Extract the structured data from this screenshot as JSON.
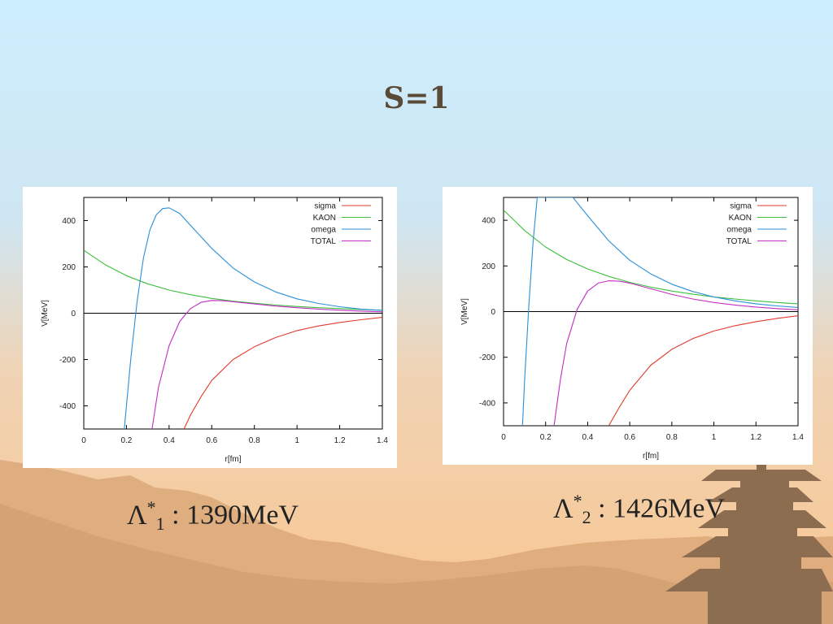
{
  "slide": {
    "title": "S=1",
    "colors": {
      "sky_top": "#cfeefc",
      "sky_bottom": "#f7c896",
      "hills": "#c99a6b",
      "pagoda": "#8a6a4e",
      "title": "#5a4a38"
    },
    "captions": [
      {
        "symbol": "Λ",
        "sub": "1",
        "sup": "*",
        "text": ": 1390MeV"
      },
      {
        "symbol": "Λ",
        "sub": "2",
        "sup": "*",
        "text": ": 1426MeV"
      }
    ]
  },
  "chart_data": [
    {
      "type": "line",
      "xlabel": "r[fm]",
      "ylabel": "V[MeV]",
      "xlim": [
        0,
        1.4
      ],
      "ylim": [
        -500,
        500
      ],
      "xticks": [
        0,
        0.2,
        0.4,
        0.6,
        0.8,
        1,
        1.2,
        1.4
      ],
      "yticks": [
        -400,
        -200,
        0,
        200,
        400
      ],
      "legend_position": "top-right",
      "series": [
        {
          "name": "sigma",
          "color": "#e23b2e",
          "x": [
            0.47,
            0.5,
            0.55,
            0.6,
            0.7,
            0.8,
            0.9,
            1.0,
            1.1,
            1.2,
            1.3,
            1.4
          ],
          "y": [
            -500,
            -440,
            -360,
            -290,
            -200,
            -145,
            -105,
            -75,
            -55,
            -40,
            -28,
            -18
          ]
        },
        {
          "name": "KAON",
          "color": "#3cbf3c",
          "x": [
            0,
            0.1,
            0.2,
            0.3,
            0.4,
            0.5,
            0.6,
            0.7,
            0.8,
            0.9,
            1.0,
            1.1,
            1.2,
            1.3,
            1.4
          ],
          "y": [
            272,
            210,
            162,
            127,
            100,
            80,
            64,
            52,
            43,
            35,
            29,
            24,
            20,
            16,
            13
          ]
        },
        {
          "name": "omega",
          "color": "#2a8fd8",
          "x": [
            0.19,
            0.22,
            0.25,
            0.28,
            0.31,
            0.34,
            0.37,
            0.4,
            0.45,
            0.5,
            0.6,
            0.7,
            0.8,
            0.9,
            1.0,
            1.1,
            1.2,
            1.3,
            1.4
          ],
          "y": [
            -500,
            -200,
            50,
            240,
            360,
            425,
            452,
            455,
            430,
            380,
            280,
            195,
            135,
            92,
            62,
            42,
            28,
            18,
            12
          ]
        },
        {
          "name": "TOTAL",
          "color": "#c22ec2",
          "x": [
            0.32,
            0.35,
            0.4,
            0.45,
            0.5,
            0.55,
            0.6,
            0.65,
            0.7,
            0.8,
            0.9,
            1.0,
            1.1,
            1.2,
            1.3,
            1.4
          ],
          "y": [
            -500,
            -320,
            -140,
            -35,
            20,
            47,
            55,
            54,
            50,
            40,
            31,
            24,
            18,
            13,
            9,
            6
          ]
        }
      ]
    },
    {
      "type": "line",
      "xlabel": "r[fm]",
      "ylabel": "V[MeV]",
      "xlim": [
        0,
        1.4
      ],
      "ylim": [
        -500,
        500
      ],
      "xticks": [
        0,
        0.2,
        0.4,
        0.6,
        0.8,
        1,
        1.2,
        1.4
      ],
      "yticks": [
        -400,
        -200,
        0,
        200,
        400
      ],
      "legend_position": "top-right",
      "series": [
        {
          "name": "sigma",
          "color": "#e23b2e",
          "x": [
            0.5,
            0.55,
            0.6,
            0.7,
            0.8,
            0.9,
            1.0,
            1.1,
            1.2,
            1.3,
            1.4
          ],
          "y": [
            -500,
            -420,
            -345,
            -235,
            -165,
            -118,
            -85,
            -62,
            -44,
            -30,
            -18
          ]
        },
        {
          "name": "KAON",
          "color": "#3cbf3c",
          "x": [
            0,
            0.1,
            0.2,
            0.3,
            0.4,
            0.5,
            0.6,
            0.7,
            0.8,
            0.9,
            1.0,
            1.1,
            1.2,
            1.3,
            1.4
          ],
          "y": [
            445,
            355,
            283,
            228,
            187,
            154,
            128,
            107,
            90,
            76,
            64,
            55,
            47,
            40,
            34
          ]
        },
        {
          "name": "omega",
          "color": "#2a8fd8",
          "x": [
            0.09,
            0.1,
            0.12,
            0.14,
            0.16,
            0.33,
            0.4,
            0.5,
            0.6,
            0.7,
            0.8,
            0.9,
            1.0,
            1.1,
            1.2,
            1.3,
            1.4
          ],
          "y": [
            -500,
            -300,
            20,
            300,
            500,
            500,
            420,
            310,
            225,
            165,
            120,
            88,
            64,
            47,
            34,
            25,
            18
          ]
        },
        {
          "name": "TOTAL",
          "color": "#c22ec2",
          "x": [
            0.24,
            0.27,
            0.3,
            0.35,
            0.4,
            0.45,
            0.5,
            0.55,
            0.6,
            0.7,
            0.8,
            0.9,
            1.0,
            1.1,
            1.2,
            1.3,
            1.4
          ],
          "y": [
            -500,
            -300,
            -140,
            10,
            90,
            125,
            135,
            133,
            125,
            100,
            75,
            55,
            40,
            29,
            20,
            13,
            8
          ]
        }
      ]
    }
  ]
}
